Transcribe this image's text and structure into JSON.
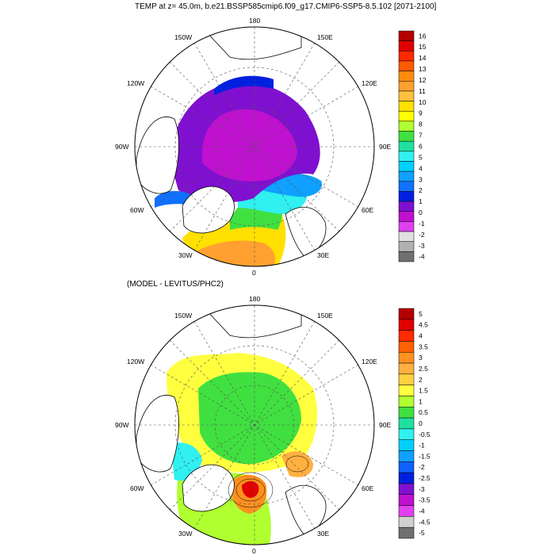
{
  "top_panel": {
    "title": "TEMP at z=  45.0m, b.e21.BSSP585cmip6.f09_g17.CMIP6-SSP5-8.5.102 [2071-2100]",
    "lon_labels": [
      "180",
      "150E",
      "120E",
      "90E",
      "60E",
      "30E",
      "0",
      "30W",
      "60W",
      "90W",
      "120W",
      "150W"
    ],
    "colorbar": {
      "labels": [
        "16",
        "15",
        "14",
        "13",
        "12",
        "11",
        "10",
        "9",
        "8",
        "7",
        "6",
        "5",
        "4",
        "3",
        "2",
        "1",
        "0",
        "-1",
        "-2",
        "-3",
        "-4"
      ],
      "colors": [
        "#b40000",
        "#e00000",
        "#ff2a00",
        "#ff5a00",
        "#ff8c10",
        "#ffa030",
        "#ffc040",
        "#ffe000",
        "#ffff00",
        "#b0ff30",
        "#40e040",
        "#20e0a0",
        "#30f0f0",
        "#00d0ff",
        "#10a0ff",
        "#1070ff",
        "#0020e0",
        "#8010d0",
        "#c010d0",
        "#e040f0",
        "#e0e0e0",
        "#b0b0b0",
        "#707070"
      ]
    }
  },
  "bottom_panel": {
    "title": "(MODEL - LEVITUS/PHC2)",
    "lon_labels": [
      "180",
      "150E",
      "120E",
      "90E",
      "60E",
      "30E",
      "0",
      "30W",
      "60W",
      "90W",
      "120W",
      "150W"
    ],
    "colorbar": {
      "labels": [
        "5",
        "4.5",
        "4",
        "3.5",
        "3",
        "2.5",
        "2",
        "1.5",
        "1",
        "0.5",
        "0",
        "-0.5",
        "-1",
        "-1.5",
        "-2",
        "-2.5",
        "-3",
        "-3.5",
        "-4",
        "-4.5",
        "-5"
      ],
      "colors": [
        "#b40000",
        "#e00000",
        "#ff2a00",
        "#ff6000",
        "#ff9020",
        "#ffb040",
        "#ffd040",
        "#ffff40",
        "#b0ff30",
        "#40e040",
        "#20e0a0",
        "#30f0f0",
        "#00d0ff",
        "#10a0ff",
        "#1060ff",
        "#0020e0",
        "#8010d0",
        "#c010d0",
        "#e040f0",
        "#d0d0d0",
        "#707070"
      ]
    }
  }
}
